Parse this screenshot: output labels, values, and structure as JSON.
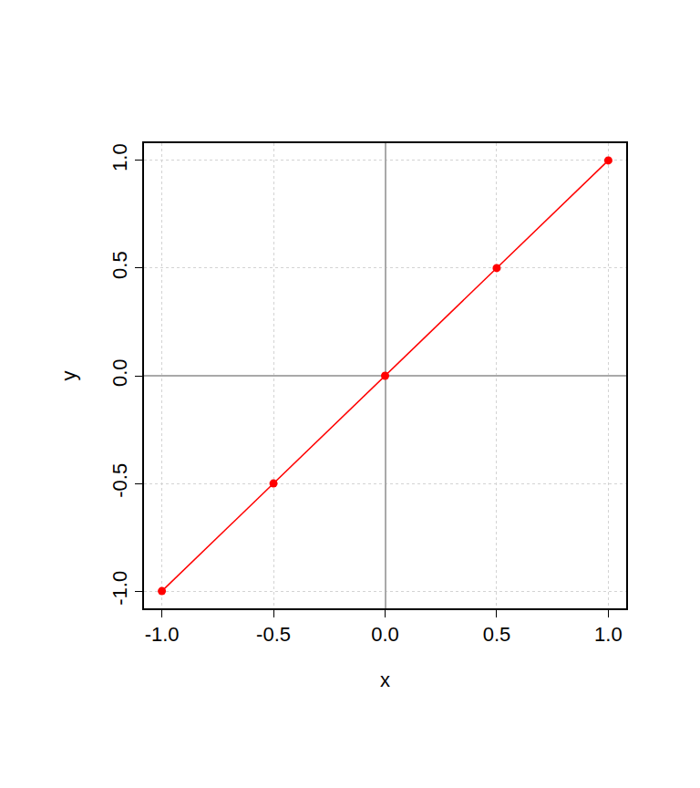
{
  "chart_data": {
    "type": "line",
    "marker": "circle",
    "line_style": "solid",
    "color": "#ff0000",
    "x": [
      -1,
      -0.5,
      0,
      0.5,
      1
    ],
    "values": [
      -1,
      -0.5,
      0,
      0.5,
      1
    ],
    "x_label": "x",
    "y_label": "y",
    "xlim": [
      -1.08,
      1.08
    ],
    "ylim": [
      -1.08,
      1.08
    ],
    "xticks": [
      {
        "value": -1,
        "label": "-1.0"
      },
      -0.5,
      {
        "value": 0,
        "label": "0.0"
      },
      0.5,
      {
        "value": 1,
        "label": "1.0"
      }
    ],
    "yticks": [
      {
        "value": -1,
        "label": "-1.0"
      },
      -0.5,
      {
        "value": 0,
        "label": "0.0"
      },
      0.5,
      {
        "value": 1,
        "label": "1.0"
      }
    ],
    "grid": true
  }
}
